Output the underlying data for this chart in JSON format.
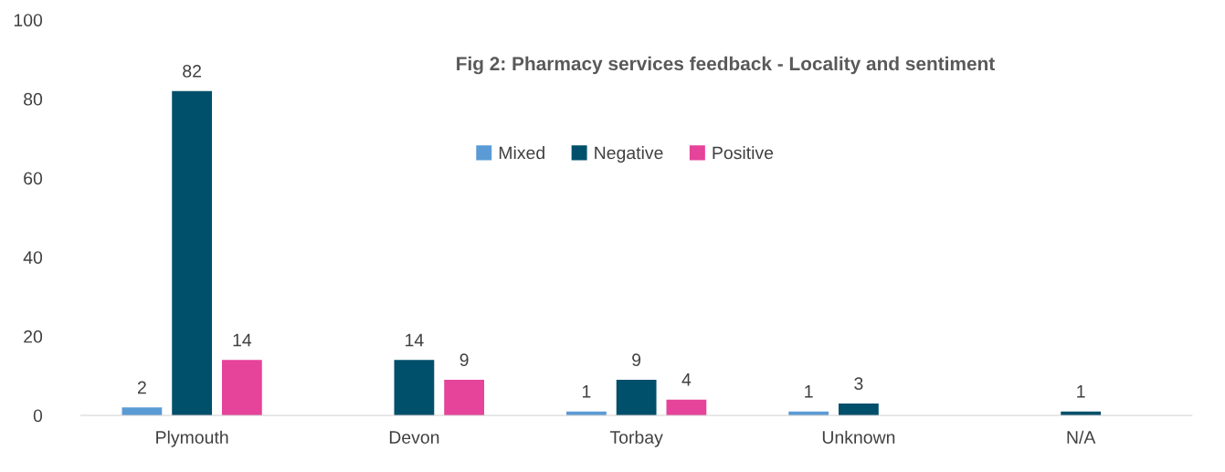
{
  "chart_data": {
    "type": "bar",
    "title": "Fig 2: Pharmacy services feedback - Locality and sentiment",
    "categories": [
      "Plymouth",
      "Devon",
      "Torbay",
      "Unknown",
      "N/A"
    ],
    "series": [
      {
        "name": "Mixed",
        "color": "#5b9bd5",
        "values": [
          2,
          null,
          1,
          1,
          null
        ]
      },
      {
        "name": "Negative",
        "color": "#004f6b",
        "values": [
          82,
          14,
          9,
          3,
          1
        ]
      },
      {
        "name": "Positive",
        "color": "#e6439a",
        "values": [
          14,
          9,
          4,
          null,
          null
        ]
      }
    ],
    "ylim": [
      0,
      100
    ],
    "yticks": [
      0,
      20,
      40,
      60,
      80,
      100
    ],
    "grid": false,
    "legend": "top",
    "data_labels": true
  }
}
